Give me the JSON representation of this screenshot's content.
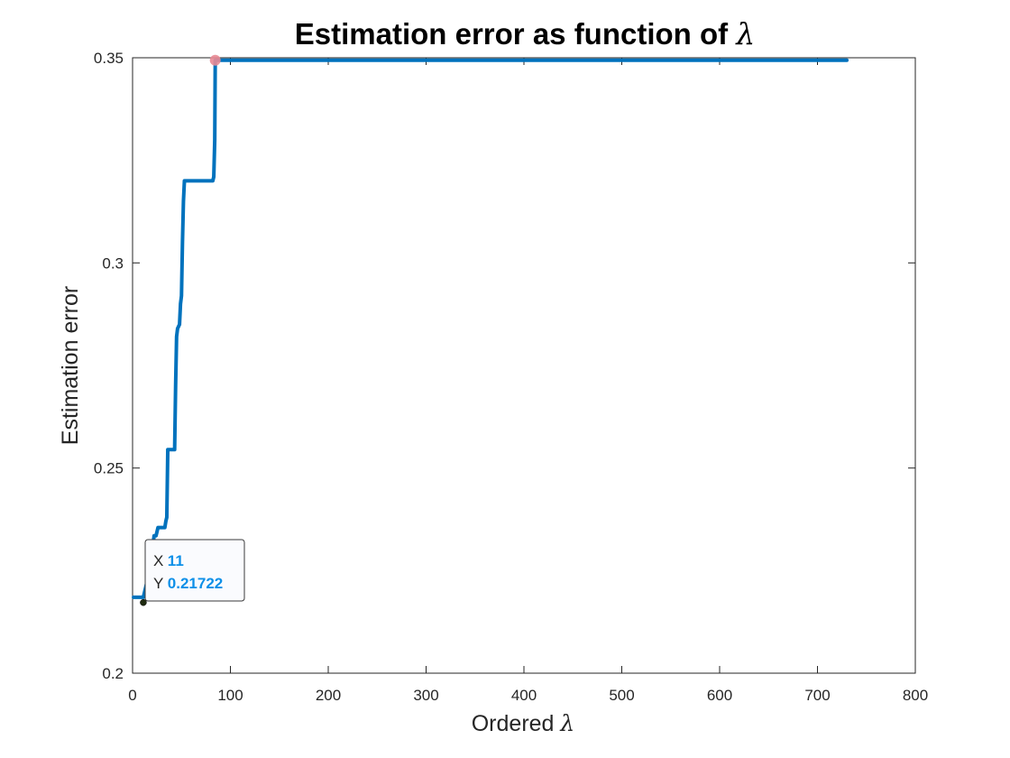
{
  "chart_data": {
    "type": "line",
    "title": "Estimation error as function of",
    "title_symbol": "λ",
    "xlabel": "Ordered",
    "xlabel_symbol": "λ",
    "ylabel": "Estimation error",
    "xlim": [
      0,
      800
    ],
    "ylim": [
      0.2,
      0.35
    ],
    "xticks": [
      0,
      100,
      200,
      300,
      400,
      500,
      600,
      700,
      800
    ],
    "xtick_labels": [
      "0",
      "100",
      "200",
      "300",
      "400",
      "500",
      "600",
      "700",
      "800"
    ],
    "yticks": [
      0.2,
      0.25,
      0.3,
      0.35
    ],
    "ytick_labels": [
      "0.2",
      "0.25",
      "0.3",
      "0.35"
    ],
    "grid": false,
    "series": [
      {
        "color": "#0072bd",
        "points": [
          [
            1,
            0.2185
          ],
          [
            11,
            0.2185
          ],
          [
            12,
            0.2195
          ],
          [
            14,
            0.2215
          ],
          [
            16,
            0.2235
          ],
          [
            18,
            0.2255
          ],
          [
            20,
            0.2295
          ],
          [
            21,
            0.2315
          ],
          [
            22,
            0.2335
          ],
          [
            24,
            0.2335
          ],
          [
            25,
            0.2345
          ],
          [
            26,
            0.2355
          ],
          [
            33,
            0.2355
          ],
          [
            34,
            0.237
          ],
          [
            35,
            0.238
          ],
          [
            36,
            0.2545
          ],
          [
            42,
            0.2545
          ],
          [
            43,
            0.2545
          ],
          [
            44,
            0.27
          ],
          [
            45,
            0.282
          ],
          [
            46,
            0.284
          ],
          [
            48,
            0.285
          ],
          [
            49,
            0.29
          ],
          [
            50,
            0.292
          ],
          [
            51,
            0.305
          ],
          [
            52,
            0.315
          ],
          [
            53,
            0.32
          ],
          [
            55,
            0.32
          ],
          [
            64,
            0.32
          ],
          [
            82,
            0.32
          ],
          [
            83,
            0.321
          ],
          [
            84,
            0.33
          ],
          [
            84.5,
            0.3494
          ],
          [
            86,
            0.3494
          ],
          [
            730,
            0.3494
          ]
        ]
      }
    ],
    "highlight_point": {
      "x": 84.5,
      "y": 0.3494,
      "color": "#e98a95"
    },
    "datatip": {
      "point": {
        "x": 11,
        "y": 0.21722
      },
      "x_key": "X",
      "x_value": "11",
      "y_key": "Y",
      "y_value": "0.21722"
    }
  }
}
